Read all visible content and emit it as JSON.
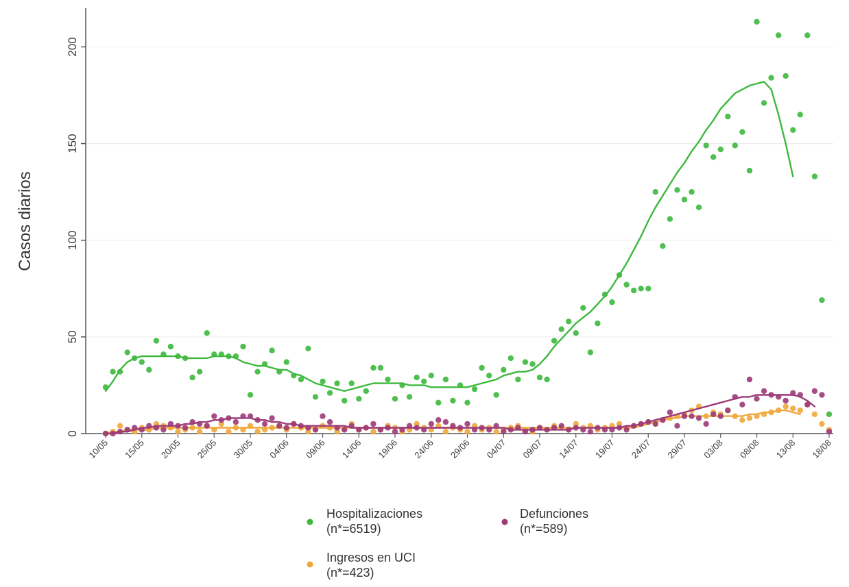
{
  "chart_data": {
    "type": "scatter",
    "title": "",
    "xlabel": "",
    "ylabel": "Casos diarios",
    "ylim": [
      0,
      220
    ],
    "yticks": [
      0,
      50,
      100,
      150,
      200
    ],
    "grid": true,
    "legend_position": "bottom",
    "x_tick_labels": [
      "10/05",
      "15/05",
      "20/05",
      "25/05",
      "30/05",
      "04/06",
      "09/06",
      "14/06",
      "19/06",
      "24/06",
      "29/06",
      "04/07",
      "09/07",
      "14/07",
      "19/07",
      "24/07",
      "29/07",
      "03/08",
      "08/08",
      "13/08",
      "18/08"
    ],
    "x_start": "10/05",
    "series": [
      {
        "name": "Hospitalizaciones",
        "legend_count": "(n*=6519)",
        "color": "#3cb83c",
        "values": [
          24,
          32,
          32,
          42,
          39,
          37,
          33,
          48,
          41,
          45,
          40,
          39,
          29,
          32,
          52,
          41,
          41,
          40,
          40,
          45,
          20,
          32,
          36,
          43,
          32,
          37,
          30,
          28,
          44,
          19,
          27,
          21,
          26,
          17,
          26,
          18,
          22,
          34,
          34,
          28,
          18,
          25,
          19,
          29,
          27,
          30,
          16,
          28,
          17,
          25,
          16,
          23,
          34,
          30,
          20,
          33,
          39,
          28,
          37,
          36,
          29,
          28,
          48,
          54,
          58,
          52,
          65,
          42,
          57,
          72,
          68,
          82,
          77,
          74,
          75,
          75,
          125,
          97,
          111,
          126,
          121,
          125,
          117,
          149,
          143,
          147,
          164,
          149,
          156,
          136,
          213,
          171,
          184,
          206,
          185,
          157,
          165,
          206,
          133,
          69,
          10
        ],
        "trend": [
          22,
          27,
          33,
          37,
          39,
          40,
          40,
          40,
          40,
          40,
          40,
          39,
          39,
          39,
          39,
          40,
          40,
          40,
          39,
          37,
          36,
          35,
          35,
          34,
          33,
          33,
          31,
          30,
          28,
          26,
          25,
          24,
          23,
          22,
          23,
          24,
          25,
          26,
          26,
          26,
          26,
          26,
          25,
          25,
          25,
          24,
          24,
          24,
          24,
          24,
          24,
          25,
          26,
          27,
          28,
          30,
          31,
          32,
          32,
          33,
          36,
          40,
          45,
          49,
          53,
          57,
          60,
          63,
          67,
          71,
          76,
          82,
          88,
          95,
          102,
          110,
          117,
          123,
          129,
          135,
          140,
          146,
          151,
          157,
          162,
          168,
          172,
          176,
          178,
          180,
          181,
          182,
          178,
          165,
          150,
          133
        ]
      },
      {
        "name": "Ingresos en UCI",
        "legend_count": "(n*=423)",
        "color": "#f0a73a",
        "values": [
          0,
          1,
          4,
          2,
          1,
          3,
          2,
          5,
          4,
          3,
          1,
          2,
          3,
          1,
          4,
          2,
          5,
          1,
          3,
          2,
          4,
          1,
          2,
          3,
          4,
          2,
          5,
          3,
          1,
          2,
          4,
          3,
          1,
          2,
          5,
          2,
          3,
          1,
          2,
          4,
          3,
          1,
          2,
          5,
          3,
          2,
          4,
          1,
          3,
          2,
          1,
          4,
          2,
          3,
          1,
          2,
          3,
          4,
          2,
          1,
          3,
          2,
          4,
          3,
          2,
          5,
          3,
          4,
          2,
          3,
          4,
          5,
          3,
          4,
          5,
          6,
          5,
          7,
          8,
          9,
          10,
          12,
          14,
          9,
          11,
          10,
          12,
          9,
          7,
          8,
          9,
          10,
          11,
          12,
          14,
          13,
          12,
          15,
          10,
          5,
          2
        ],
        "trend": [
          0,
          1,
          1,
          2,
          2,
          2,
          2,
          3,
          3,
          3,
          3,
          3,
          3,
          3,
          3,
          3,
          3,
          3,
          3,
          3,
          3,
          3,
          3,
          3,
          3,
          3,
          3,
          3,
          3,
          3,
          3,
          3,
          3,
          3,
          3,
          3,
          3,
          3,
          3,
          3,
          3,
          3,
          3,
          3,
          3,
          3,
          3,
          3,
          3,
          3,
          3,
          3,
          3,
          3,
          3,
          3,
          3,
          3,
          3,
          3,
          3,
          3,
          3,
          3,
          3,
          3,
          3,
          3,
          3,
          3,
          3,
          3,
          3,
          3,
          4,
          5,
          6,
          7,
          8,
          8,
          9,
          9,
          9,
          9,
          9,
          9,
          9,
          9,
          9,
          10,
          10,
          11,
          11,
          12,
          12,
          11,
          10
        ]
      },
      {
        "name": "Defunciones",
        "legend_count": "(n*=589)",
        "color": "#9c3a78",
        "values": [
          0,
          0,
          1,
          2,
          3,
          2,
          4,
          3,
          2,
          5,
          4,
          3,
          6,
          5,
          4,
          9,
          7,
          8,
          6,
          9,
          9,
          7,
          5,
          8,
          4,
          3,
          5,
          4,
          3,
          2,
          9,
          6,
          3,
          2,
          4,
          2,
          3,
          5,
          2,
          3,
          1,
          2,
          4,
          3,
          2,
          5,
          7,
          6,
          4,
          3,
          5,
          2,
          3,
          2,
          4,
          1,
          2,
          3,
          1,
          2,
          3,
          2,
          3,
          4,
          2,
          3,
          2,
          1,
          3,
          2,
          2,
          3,
          2,
          4,
          5,
          6,
          5,
          7,
          11,
          4,
          9,
          9,
          8,
          5,
          10,
          9,
          12,
          19,
          15,
          28,
          18,
          22,
          20,
          19,
          17,
          21,
          20,
          15,
          22,
          20,
          1
        ],
        "trend": [
          0,
          0,
          1,
          1,
          2,
          3,
          3,
          4,
          4,
          4,
          4,
          5,
          5,
          6,
          6,
          7,
          7,
          8,
          8,
          8,
          8,
          7,
          7,
          6,
          6,
          5,
          5,
          4,
          4,
          4,
          4,
          4,
          4,
          4,
          3,
          3,
          3,
          3,
          3,
          3,
          3,
          3,
          3,
          3,
          3,
          3,
          3,
          3,
          3,
          3,
          3,
          3,
          3,
          3,
          3,
          3,
          2,
          2,
          2,
          2,
          2,
          2,
          2,
          2,
          2,
          3,
          3,
          3,
          3,
          3,
          3,
          3,
          4,
          4,
          5,
          6,
          7,
          8,
          9,
          10,
          11,
          12,
          13,
          14,
          15,
          16,
          17,
          18,
          19,
          19,
          20,
          20,
          20,
          20,
          20,
          20,
          19,
          17,
          14
        ]
      }
    ]
  }
}
